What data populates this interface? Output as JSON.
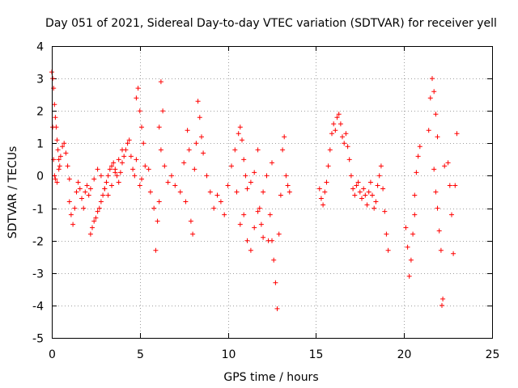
{
  "colors": {
    "series": "#ff0000",
    "grid": "#a0a0a0",
    "axis": "#000000",
    "background": "#ffffff"
  },
  "chart_data": {
    "type": "scatter",
    "title": "Day 051 of 2021, Sidereal Day-to-day VTEC variation (SDTVAR) for receiver yell",
    "xlabel": "GPS time / hours",
    "ylabel": "SDTVAR / TECUs",
    "xlim": [
      0,
      25
    ],
    "ylim": [
      -5,
      4
    ],
    "xticks": [
      "0",
      "5",
      "10",
      "15",
      "20",
      "25"
    ],
    "yticks": [
      "4",
      "3",
      "2",
      "1",
      "0",
      "-1",
      "-2",
      "-3",
      "-4",
      "-5"
    ],
    "grid": true,
    "marker": "+",
    "series": [
      {
        "name": "SDTVAR",
        "points": [
          [
            0.0,
            3.2
          ],
          [
            0.05,
            3.0
          ],
          [
            0.1,
            2.7
          ],
          [
            0.15,
            2.2
          ],
          [
            0.2,
            1.8
          ],
          [
            0.25,
            1.5
          ],
          [
            0.3,
            1.1
          ],
          [
            0.35,
            0.8
          ],
          [
            0.4,
            0.5
          ],
          [
            0.45,
            0.3
          ],
          [
            0.05,
            1.5
          ],
          [
            0.1,
            0.5
          ],
          [
            0.15,
            0.0
          ],
          [
            0.2,
            -0.1
          ],
          [
            0.3,
            -0.2
          ],
          [
            0.4,
            0.2
          ],
          [
            0.5,
            0.6
          ],
          [
            0.6,
            0.9
          ],
          [
            0.7,
            1.0
          ],
          [
            0.8,
            0.7
          ],
          [
            0.9,
            0.3
          ],
          [
            1.0,
            -0.1
          ],
          [
            1.0,
            -0.8
          ],
          [
            1.1,
            -1.2
          ],
          [
            1.2,
            -1.5
          ],
          [
            1.3,
            -1.0
          ],
          [
            1.4,
            -0.5
          ],
          [
            1.5,
            -0.2
          ],
          [
            1.6,
            -0.4
          ],
          [
            1.7,
            -0.7
          ],
          [
            1.8,
            -1.0
          ],
          [
            1.9,
            -0.5
          ],
          [
            2.0,
            -0.3
          ],
          [
            2.1,
            -0.6
          ],
          [
            2.2,
            -1.8
          ],
          [
            2.3,
            -1.6
          ],
          [
            2.4,
            -1.4
          ],
          [
            2.5,
            -1.3
          ],
          [
            2.6,
            -1.1
          ],
          [
            2.7,
            -1.0
          ],
          [
            2.8,
            -0.8
          ],
          [
            2.9,
            -0.6
          ],
          [
            3.0,
            -0.4
          ],
          [
            3.1,
            -0.2
          ],
          [
            3.2,
            0.0
          ],
          [
            3.3,
            0.2
          ],
          [
            3.4,
            0.3
          ],
          [
            3.5,
            0.4
          ],
          [
            3.6,
            0.2
          ],
          [
            3.7,
            0.0
          ],
          [
            3.8,
            -0.2
          ],
          [
            3.9,
            0.1
          ],
          [
            4.0,
            0.4
          ],
          [
            4.1,
            0.6
          ],
          [
            4.2,
            0.8
          ],
          [
            4.3,
            1.0
          ],
          [
            4.4,
            1.1
          ],
          [
            4.5,
            0.6
          ],
          [
            4.6,
            0.2
          ],
          [
            4.7,
            0.0
          ],
          [
            2.2,
            -0.4
          ],
          [
            2.4,
            -0.1
          ],
          [
            2.6,
            0.2
          ],
          [
            2.8,
            0.0
          ],
          [
            3.0,
            -0.4
          ],
          [
            3.2,
            -0.6
          ],
          [
            3.4,
            -0.3
          ],
          [
            3.6,
            0.1
          ],
          [
            3.8,
            0.5
          ],
          [
            4.0,
            0.8
          ],
          [
            4.9,
            2.7
          ],
          [
            4.8,
            2.4
          ],
          [
            5.0,
            2.0
          ],
          [
            5.1,
            1.5
          ],
          [
            5.2,
            1.0
          ],
          [
            4.8,
            0.5
          ],
          [
            5.0,
            -0.3
          ],
          [
            5.1,
            -0.1
          ],
          [
            5.3,
            0.3
          ],
          [
            5.5,
            0.2
          ],
          [
            5.6,
            -0.5
          ],
          [
            5.8,
            -1.0
          ],
          [
            6.0,
            -1.4
          ],
          [
            5.9,
            -2.3
          ],
          [
            6.1,
            -0.8
          ],
          [
            6.2,
            2.9
          ],
          [
            6.3,
            2.0
          ],
          [
            6.1,
            1.5
          ],
          [
            6.2,
            0.8
          ],
          [
            6.4,
            0.3
          ],
          [
            6.6,
            -0.2
          ],
          [
            6.8,
            0.0
          ],
          [
            7.0,
            -0.3
          ],
          [
            7.3,
            -0.5
          ],
          [
            7.5,
            0.4
          ],
          [
            7.6,
            -0.8
          ],
          [
            7.7,
            1.4
          ],
          [
            7.8,
            0.8
          ],
          [
            7.9,
            -1.4
          ],
          [
            8.0,
            -1.8
          ],
          [
            8.1,
            0.2
          ],
          [
            8.2,
            1.0
          ],
          [
            8.3,
            2.3
          ],
          [
            8.4,
            1.8
          ],
          [
            8.5,
            1.2
          ],
          [
            8.6,
            0.7
          ],
          [
            8.8,
            0.0
          ],
          [
            9.0,
            -0.5
          ],
          [
            9.2,
            -1.0
          ],
          [
            9.4,
            -0.6
          ],
          [
            9.6,
            -0.8
          ],
          [
            9.8,
            -1.2
          ],
          [
            10.0,
            -0.3
          ],
          [
            10.2,
            0.3
          ],
          [
            10.4,
            0.8
          ],
          [
            10.6,
            1.3
          ],
          [
            10.7,
            1.5
          ],
          [
            10.8,
            1.1
          ],
          [
            10.9,
            0.5
          ],
          [
            11.0,
            0.0
          ],
          [
            11.1,
            -0.4
          ],
          [
            11.3,
            -0.2
          ],
          [
            11.5,
            0.1
          ],
          [
            11.7,
            0.8
          ],
          [
            11.8,
            -1.0
          ],
          [
            11.9,
            -1.5
          ],
          [
            12.0,
            -0.5
          ],
          [
            12.2,
            0.0
          ],
          [
            12.4,
            -1.2
          ],
          [
            12.5,
            -2.0
          ],
          [
            12.6,
            -2.6
          ],
          [
            12.7,
            -3.3
          ],
          [
            12.8,
            -4.1
          ],
          [
            12.9,
            -1.8
          ],
          [
            13.0,
            -0.6
          ],
          [
            13.1,
            0.8
          ],
          [
            13.2,
            1.2
          ],
          [
            13.3,
            0.0
          ],
          [
            13.4,
            -0.3
          ],
          [
            13.5,
            -0.5
          ],
          [
            10.5,
            -0.5
          ],
          [
            10.7,
            -1.5
          ],
          [
            10.9,
            -1.2
          ],
          [
            11.1,
            -2.0
          ],
          [
            11.3,
            -2.3
          ],
          [
            11.5,
            -1.6
          ],
          [
            11.7,
            -1.1
          ],
          [
            12.0,
            -1.9
          ],
          [
            12.3,
            -2.0
          ],
          [
            12.5,
            0.4
          ],
          [
            15.2,
            -0.4
          ],
          [
            15.3,
            -0.7
          ],
          [
            15.4,
            -0.9
          ],
          [
            15.5,
            -0.5
          ],
          [
            15.6,
            -0.2
          ],
          [
            15.7,
            0.3
          ],
          [
            15.8,
            0.8
          ],
          [
            15.9,
            1.3
          ],
          [
            16.0,
            1.6
          ],
          [
            16.1,
            1.4
          ],
          [
            16.2,
            1.8
          ],
          [
            16.3,
            1.9
          ],
          [
            16.4,
            1.6
          ],
          [
            16.5,
            1.2
          ],
          [
            16.6,
            1.0
          ],
          [
            16.7,
            1.3
          ],
          [
            16.8,
            0.9
          ],
          [
            16.9,
            0.5
          ],
          [
            17.0,
            0.0
          ],
          [
            17.1,
            -0.4
          ],
          [
            17.2,
            -0.6
          ],
          [
            17.3,
            -0.3
          ],
          [
            17.4,
            -0.2
          ],
          [
            17.5,
            -0.5
          ],
          [
            17.6,
            -0.7
          ],
          [
            17.7,
            -0.4
          ],
          [
            17.8,
            -0.6
          ],
          [
            17.9,
            -0.9
          ],
          [
            18.0,
            -0.5
          ],
          [
            18.1,
            -0.2
          ],
          [
            18.2,
            -0.6
          ],
          [
            18.3,
            -1.0
          ],
          [
            18.4,
            -0.8
          ],
          [
            18.5,
            -0.3
          ],
          [
            18.6,
            0.0
          ],
          [
            18.7,
            0.3
          ],
          [
            18.8,
            -0.4
          ],
          [
            18.9,
            -1.1
          ],
          [
            19.0,
            -1.8
          ],
          [
            19.1,
            -2.3
          ],
          [
            20.1,
            -1.6
          ],
          [
            20.2,
            -2.2
          ],
          [
            20.3,
            -3.1
          ],
          [
            20.4,
            -2.6
          ],
          [
            20.5,
            -1.8
          ],
          [
            20.6,
            -0.6
          ],
          [
            20.7,
            0.1
          ],
          [
            20.8,
            0.6
          ],
          [
            20.9,
            0.9
          ],
          [
            20.6,
            -1.2
          ],
          [
            21.4,
            1.4
          ],
          [
            21.5,
            2.4
          ],
          [
            21.6,
            3.0
          ],
          [
            21.7,
            2.6
          ],
          [
            21.8,
            1.9
          ],
          [
            21.9,
            1.2
          ],
          [
            21.7,
            0.2
          ],
          [
            21.8,
            -0.5
          ],
          [
            21.9,
            -1.0
          ],
          [
            22.0,
            -1.7
          ],
          [
            22.1,
            -2.3
          ],
          [
            22.2,
            -3.8
          ],
          [
            22.15,
            -4.0
          ],
          [
            22.3,
            0.3
          ],
          [
            22.5,
            0.4
          ],
          [
            22.6,
            -0.3
          ],
          [
            22.7,
            -1.2
          ],
          [
            22.8,
            -2.4
          ],
          [
            22.9,
            -0.3
          ],
          [
            23.0,
            1.3
          ]
        ]
      }
    ]
  }
}
